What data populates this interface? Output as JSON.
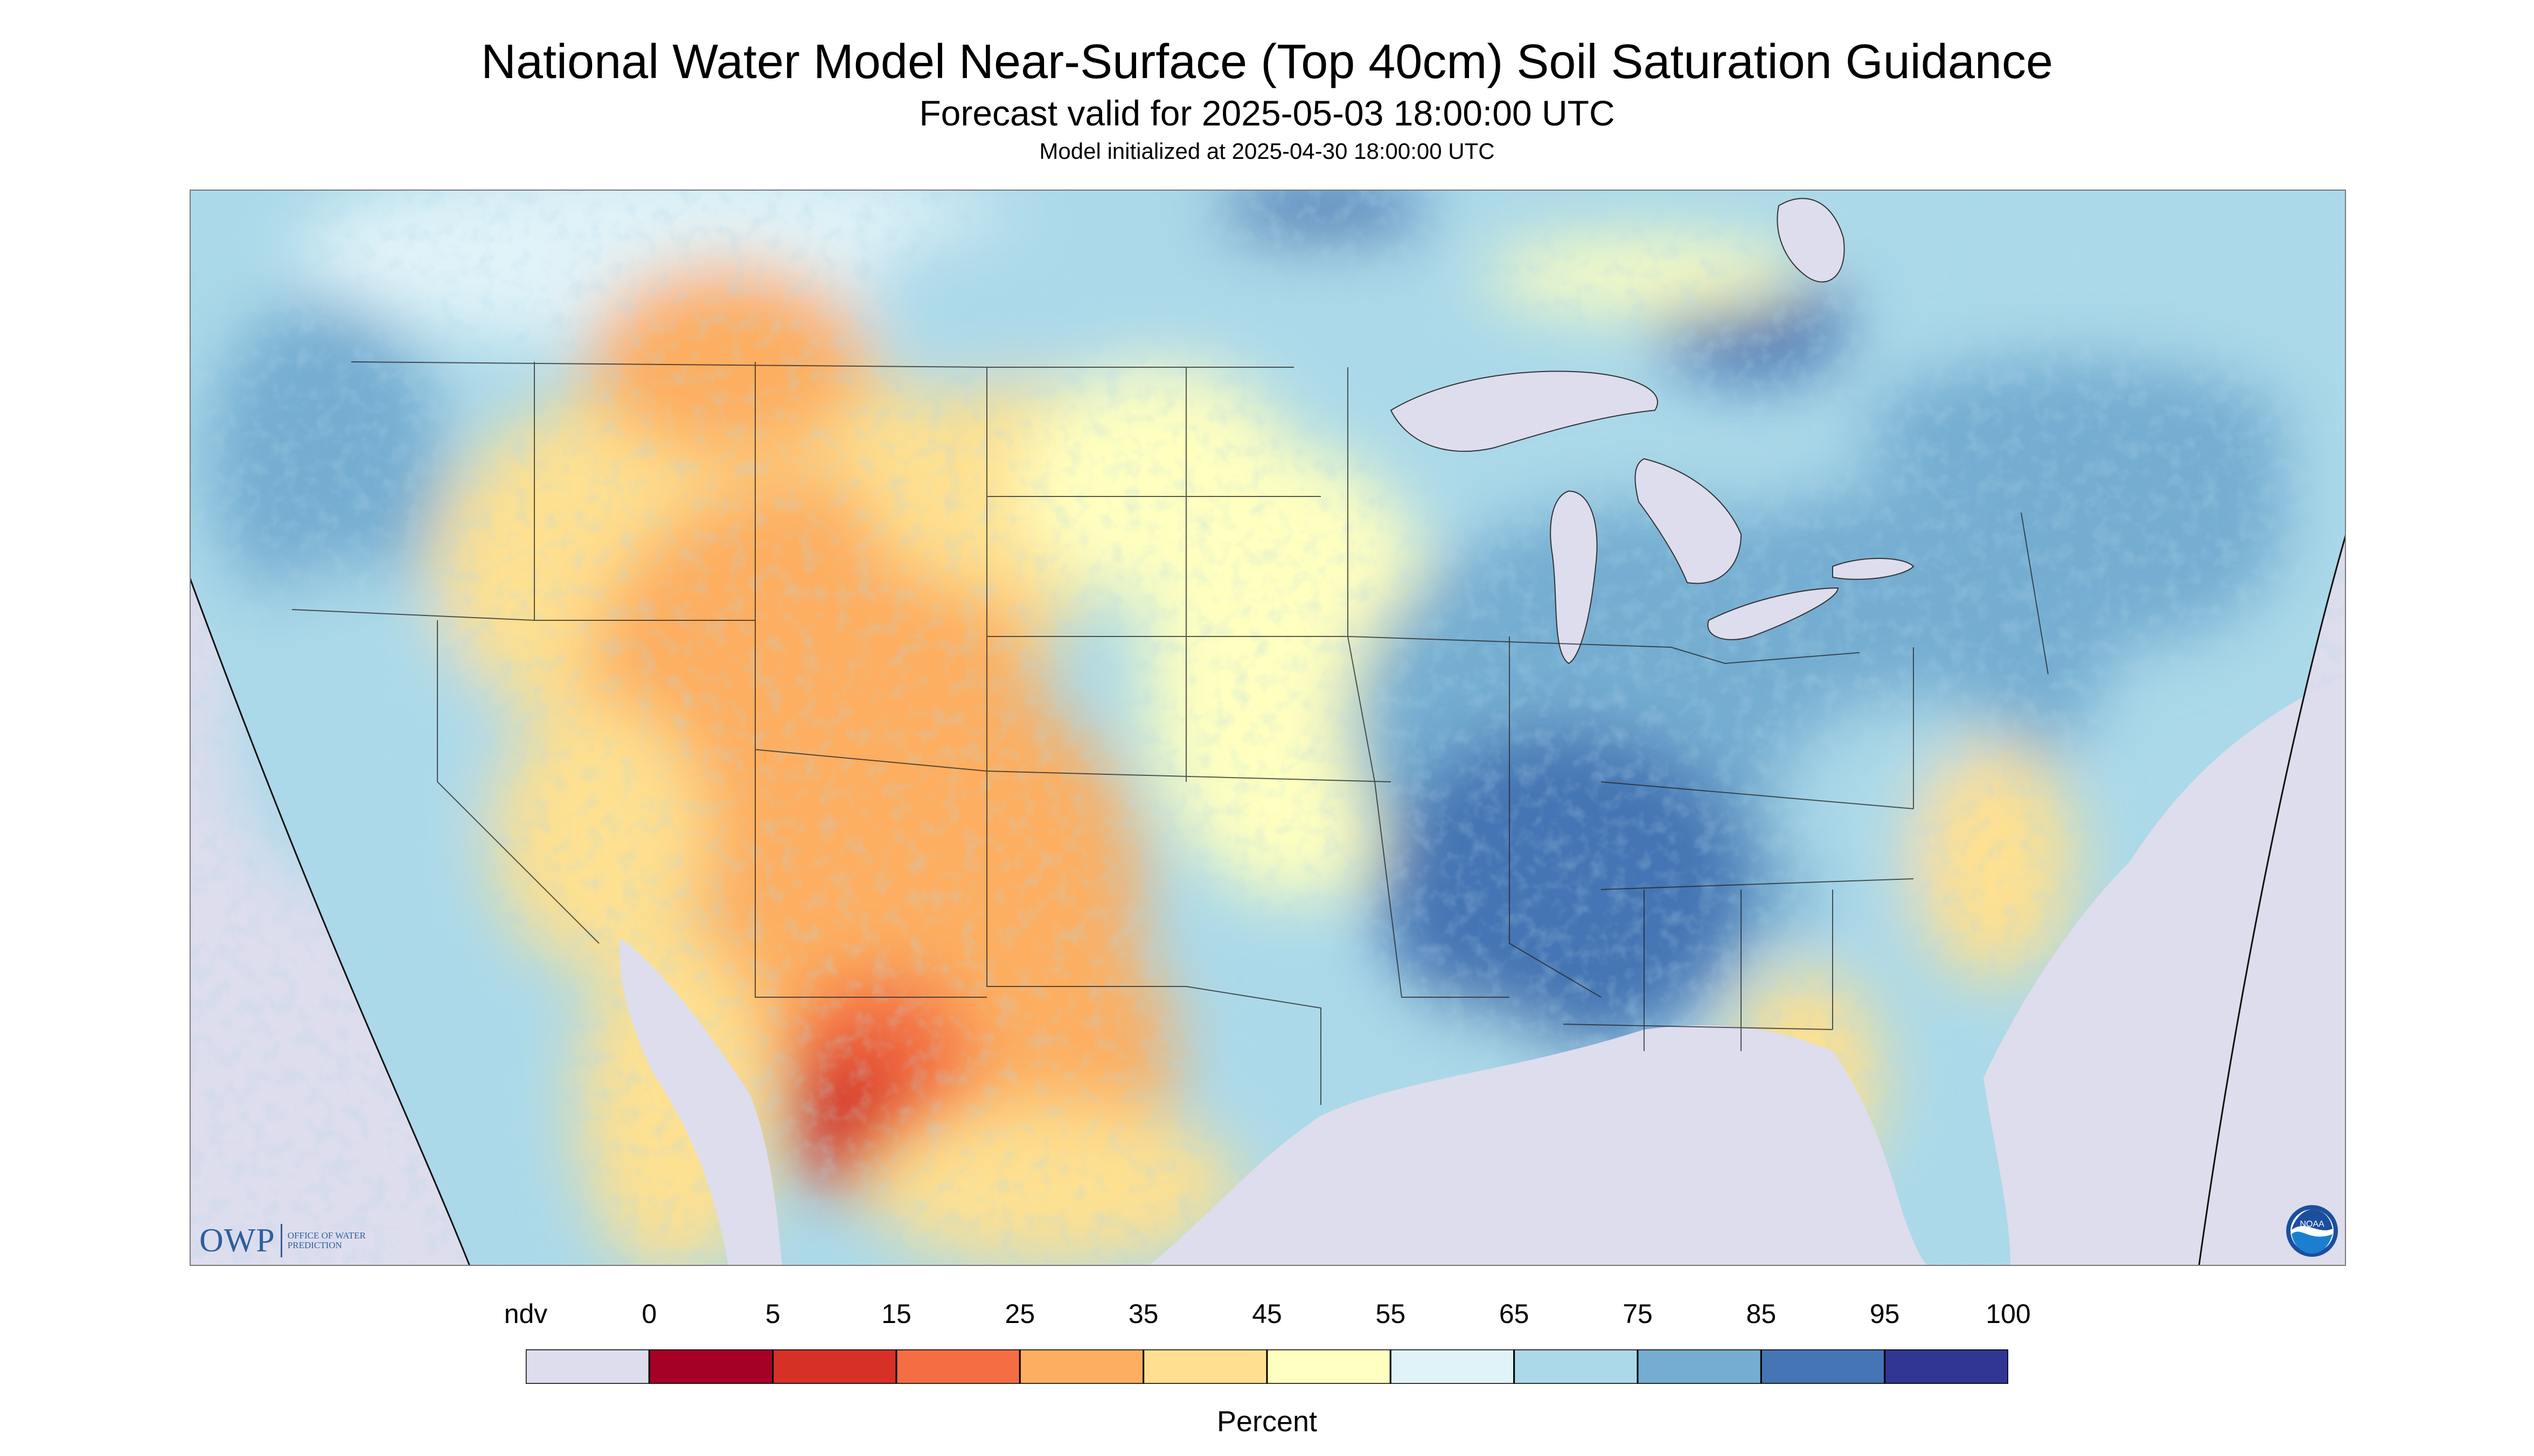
{
  "header": {
    "title": "National Water Model Near-Surface (Top 40cm) Soil Saturation Guidance",
    "subtitle": "Forecast valid for 2025-05-03 18:00:00 UTC",
    "init_line": "Model initialized at 2025-04-30 18:00:00 UTC"
  },
  "logos": {
    "owp_mark": "OWP",
    "owp_text": "OFFICE OF WATER PREDICTION",
    "noaa_text": "NOAA"
  },
  "legend": {
    "unit": "Percent",
    "ticks": [
      "ndv",
      "0",
      "5",
      "15",
      "25",
      "35",
      "45",
      "55",
      "65",
      "75",
      "85",
      "95",
      "100"
    ],
    "bins": [
      {
        "label": "ndv",
        "color": "#dddded"
      },
      {
        "label": "0-5",
        "color": "#a50026"
      },
      {
        "label": "5-15",
        "color": "#d73027"
      },
      {
        "label": "15-25",
        "color": "#f46d43"
      },
      {
        "label": "25-35",
        "color": "#fdae61"
      },
      {
        "label": "35-45",
        "color": "#fee090"
      },
      {
        "label": "45-55",
        "color": "#ffffbf"
      },
      {
        "label": "55-65",
        "color": "#e0f3f8"
      },
      {
        "label": "65-75",
        "color": "#abd9e9"
      },
      {
        "label": "75-85",
        "color": "#74add1"
      },
      {
        "label": "85-95",
        "color": "#4575b4"
      },
      {
        "label": "95-100",
        "color": "#313695"
      }
    ]
  },
  "map": {
    "background_color": "#dddded",
    "lake_color": "#dddded",
    "region": "Continental United States with southern Canada and northern Mexico"
  }
}
